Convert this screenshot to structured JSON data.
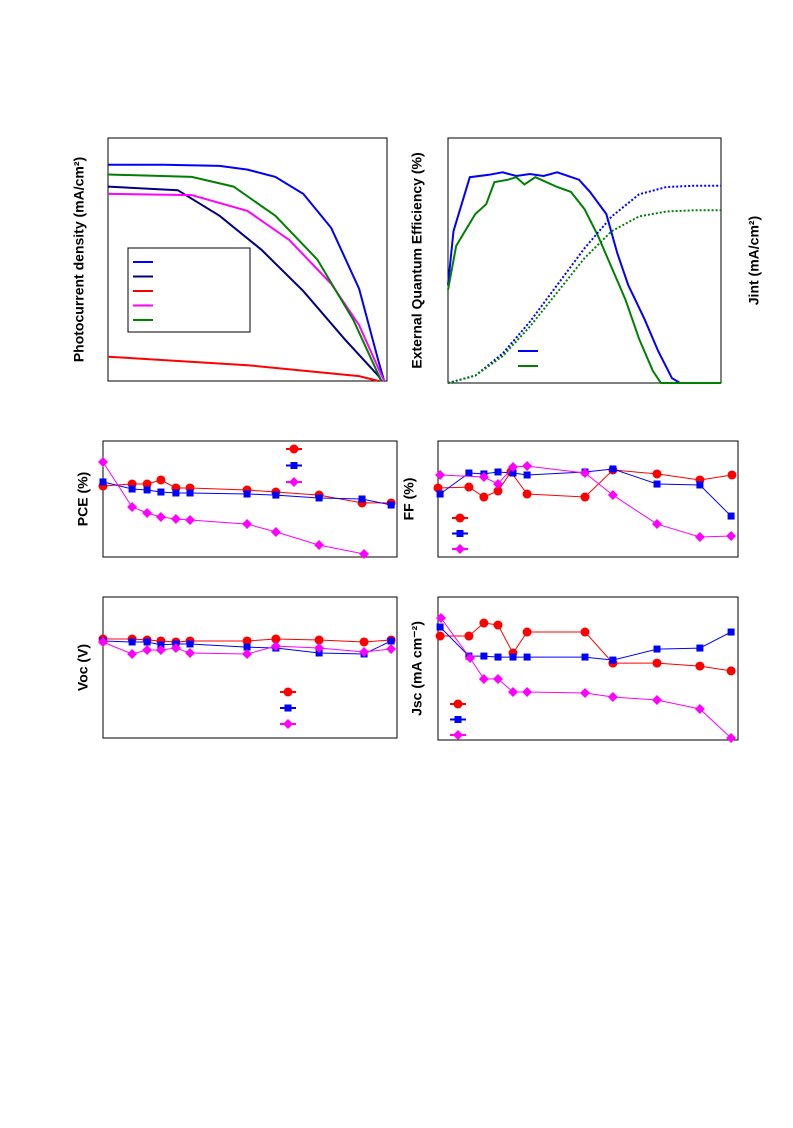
{
  "chart_data": [
    {
      "type": "line",
      "ylabel": "Photocurrent density (mA/cm²)",
      "xlim": [
        0,
        100
      ],
      "ylim": [
        0,
        100
      ],
      "legend_box": true,
      "series": [
        {
          "color": "#0000ff",
          "x": [
            0,
            20,
            40,
            50,
            60,
            70,
            80,
            90,
            97,
            99
          ],
          "values": [
            89,
            89,
            88.5,
            87,
            84,
            77,
            63,
            38,
            8,
            0
          ]
        },
        {
          "color": "#000080",
          "x": [
            0,
            25,
            40,
            55,
            70,
            85,
            97,
            98
          ],
          "values": [
            80,
            78.5,
            68,
            54,
            37,
            17,
            2,
            0
          ]
        },
        {
          "color": "#ff0000",
          "x": [
            0,
            50,
            90,
            97
          ],
          "values": [
            10,
            6.5,
            2,
            0
          ]
        },
        {
          "color": "#ff00ff",
          "x": [
            0,
            30,
            50,
            65,
            80,
            90,
            97,
            99
          ],
          "values": [
            77,
            76.5,
            70,
            58,
            40,
            23,
            5,
            0
          ]
        },
        {
          "color": "#008000",
          "x": [
            0,
            30,
            45,
            60,
            75,
            88,
            96,
            98
          ],
          "values": [
            85,
            84,
            80,
            68,
            50,
            25,
            5,
            0
          ]
        }
      ]
    },
    {
      "type": "line",
      "ylabel": "External Quantum Efficiency (%)",
      "y2label": "Jint (mA/cm²)",
      "xlim": [
        0,
        100
      ],
      "ylim": [
        0,
        100
      ],
      "series": [
        {
          "color": "#0000ff",
          "x": [
            0,
            2,
            8,
            15,
            20,
            25,
            30,
            35,
            40,
            48,
            52,
            58,
            62,
            66,
            72,
            77,
            82,
            85,
            100
          ],
          "values": [
            40,
            62,
            84,
            85,
            86,
            84.5,
            85.3,
            84.5,
            86,
            83,
            78,
            69,
            53,
            40,
            26,
            13,
            2,
            0,
            0
          ]
        },
        {
          "color": "#008000",
          "x": [
            0,
            3,
            10,
            14,
            17,
            22,
            25,
            28,
            32,
            40,
            45,
            50,
            55,
            60,
            65,
            70,
            75,
            78,
            100
          ],
          "values": [
            38,
            56,
            69,
            73,
            82,
            83,
            84,
            81,
            84,
            80,
            78,
            71,
            60,
            47,
            34,
            18,
            5,
            0,
            0
          ]
        },
        {
          "color": "#0000ff",
          "linestyle": "dotted",
          "x": [
            0,
            10,
            20,
            30,
            40,
            50,
            60,
            70,
            80,
            90,
            100
          ],
          "values": [
            0,
            3,
            12,
            25,
            40,
            55,
            68,
            77,
            80,
            80.5,
            80.5
          ]
        },
        {
          "color": "#008000",
          "linestyle": "dotted",
          "x": [
            0,
            10,
            20,
            30,
            40,
            50,
            60,
            70,
            80,
            90,
            100
          ],
          "values": [
            0,
            3,
            11,
            23,
            37,
            51,
            62,
            68,
            70,
            70.5,
            70.5
          ]
        }
      ]
    },
    {
      "type": "line",
      "ylabel": "PCE (%)",
      "xlim": [
        0,
        100
      ],
      "ylim": [
        0,
        100
      ],
      "series": [
        {
          "color": "#ff0000",
          "marker": "circle",
          "x": [
            0,
            9.9,
            15,
            19.7,
            24.8,
            29.6,
            49,
            58.8,
            73.5,
            88.1,
            98
          ],
          "values": [
            61.2,
            62.9,
            62.9,
            66.4,
            59.5,
            59.5,
            57.8,
            56,
            53.4,
            46.6,
            46.6
          ]
        },
        {
          "color": "#0000ff",
          "marker": "square",
          "x": [
            0,
            9.9,
            15,
            19.7,
            24.8,
            29.6,
            49,
            58.8,
            73.5,
            88.1,
            98
          ],
          "values": [
            64.7,
            58.6,
            57.8,
            56,
            55.2,
            55.2,
            54.3,
            53.4,
            50.9,
            50,
            44.8
          ]
        },
        {
          "color": "#ff00ff",
          "marker": "diamond",
          "x": [
            0,
            9.9,
            15,
            19.7,
            24.8,
            29.6,
            49,
            58.8,
            73.5,
            88.8
          ],
          "values": [
            81.9,
            43.1,
            37.9,
            34.5,
            32.8,
            31.9,
            28.4,
            21.6,
            10.3,
            2.6
          ]
        }
      ]
    },
    {
      "type": "line",
      "ylabel": "FF (%)",
      "xlim": [
        0,
        100
      ],
      "ylim": [
        0,
        100
      ],
      "series": [
        {
          "color": "#ff0000",
          "marker": "circle",
          "x": [
            0,
            10.3,
            15.3,
            20,
            24.3,
            29.7,
            49,
            58.3,
            73,
            87.3,
            98
          ],
          "values": [
            59.5,
            60.3,
            51.7,
            56.9,
            73.3,
            54.3,
            51.7,
            75,
            71.6,
            66.4,
            70.7
          ]
        },
        {
          "color": "#0000ff",
          "marker": "square",
          "x": [
            0.7,
            10.3,
            15.3,
            20,
            25,
            29.7,
            49,
            58.3,
            73,
            87.3,
            97.7
          ],
          "values": [
            54.3,
            72.4,
            71.6,
            73.3,
            72.4,
            70.7,
            73.3,
            75.9,
            62.9,
            62.1,
            35.3
          ]
        },
        {
          "color": "#ff00ff",
          "marker": "diamond",
          "x": [
            0.7,
            15.3,
            20,
            25,
            29.7,
            49,
            58.3,
            73,
            87.3,
            97.7
          ],
          "values": [
            70.7,
            69,
            62.9,
            77.6,
            78.4,
            72.4,
            53.4,
            28.4,
            17.2,
            18.1
          ]
        }
      ]
    },
    {
      "type": "line",
      "ylabel": "Voc (V)",
      "xlim": [
        0,
        100
      ],
      "ylim": [
        0,
        100
      ],
      "series": [
        {
          "color": "#ff0000",
          "marker": "circle",
          "x": [
            0,
            9.9,
            15,
            19.7,
            24.8,
            29.6,
            49,
            58.8,
            73.5,
            88.8,
            98
          ],
          "values": [
            70.2,
            70.2,
            69.5,
            68.8,
            68.1,
            68.8,
            68.8,
            70.2,
            69.5,
            68.1,
            69.5
          ]
        },
        {
          "color": "#0000ff",
          "marker": "square",
          "x": [
            0,
            9.9,
            15,
            19.7,
            24.8,
            29.6,
            49,
            58.8,
            73.5,
            88.8,
            98
          ],
          "values": [
            68.8,
            68.1,
            68.1,
            66,
            66.7,
            66.7,
            64.5,
            63.8,
            60.3,
            59.6,
            68.8
          ]
        },
        {
          "color": "#ff00ff",
          "marker": "diamond",
          "x": [
            0,
            9.9,
            15,
            19.7,
            24.8,
            29.6,
            49,
            58.8,
            73.5,
            88.8,
            98
          ],
          "values": [
            68.1,
            59.6,
            62.4,
            62.4,
            63.8,
            60.3,
            59.6,
            65.2,
            63.8,
            61,
            63.1
          ]
        }
      ]
    },
    {
      "type": "line",
      "ylabel": "Jsc (mA cm⁻²)",
      "xlim": [
        0,
        100
      ],
      "ylim": [
        0,
        100
      ],
      "series": [
        {
          "color": "#ff0000",
          "marker": "circle",
          "x": [
            0.7,
            10.3,
            15.3,
            20,
            25,
            29.7,
            49,
            58.3,
            73,
            87.3,
            97.7
          ],
          "values": [
            72.7,
            72.7,
            81.8,
            80.4,
            60.8,
            75.5,
            75.5,
            53.8,
            53.8,
            51.7,
            48.3
          ]
        },
        {
          "color": "#0000ff",
          "marker": "square",
          "x": [
            0.7,
            10.3,
            15.3,
            20,
            25,
            29.7,
            49,
            58.3,
            73,
            87.3,
            97.7
          ],
          "values": [
            79,
            58.7,
            58.7,
            58,
            58,
            58,
            58,
            55.9,
            63.6,
            64.3,
            75.5
          ]
        },
        {
          "color": "#ff00ff",
          "marker": "diamond",
          "x": [
            1,
            10.7,
            15.3,
            20,
            25,
            29.7,
            49,
            58.3,
            73,
            87.3,
            97.7
          ],
          "values": [
            85.3,
            57.3,
            42.7,
            42.7,
            33.6,
            33.6,
            32.9,
            30.1,
            28,
            21.7,
            1.4
          ]
        }
      ]
    }
  ]
}
